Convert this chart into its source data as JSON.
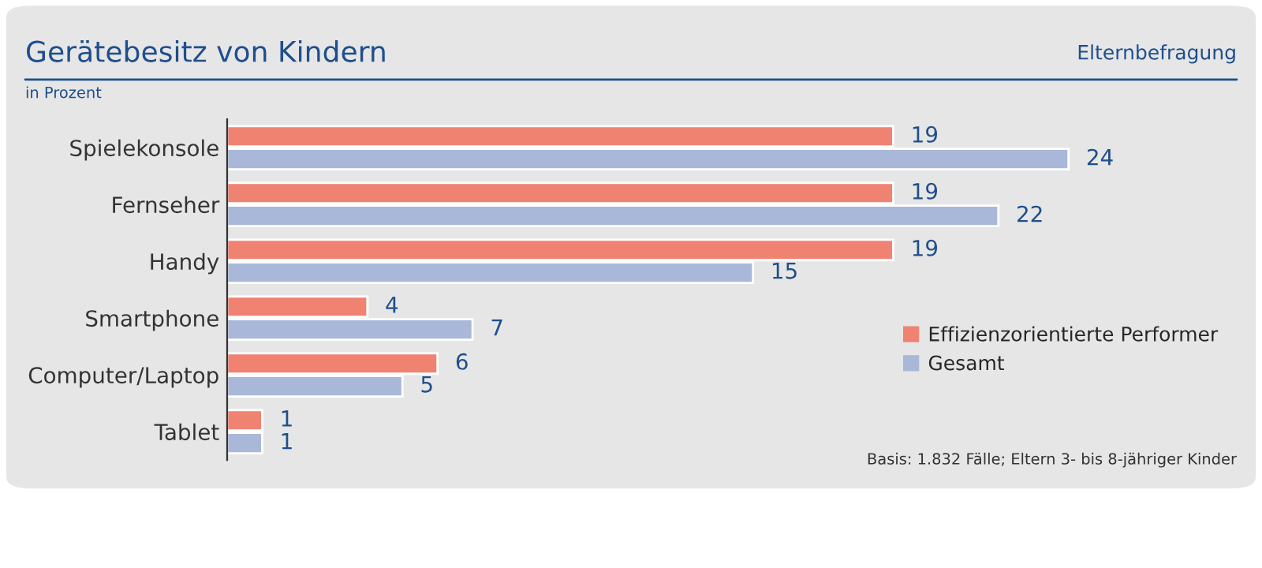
{
  "chart_data": {
    "type": "bar",
    "orientation": "horizontal",
    "title": "Gerätebesitz von Kindern",
    "subtitle": "Elternbefragung",
    "ylabel": "in Prozent",
    "categories": [
      "Spielekonsole",
      "Fernseher",
      "Handy",
      "Smartphone",
      "Computer/Laptop",
      "Tablet"
    ],
    "series": [
      {
        "name": "Effizienzorientierte Performer",
        "color": "#f08272",
        "values": [
          19,
          19,
          19,
          4,
          6,
          1
        ]
      },
      {
        "name": "Gesamt",
        "color": "#a9b8d8",
        "values": [
          24,
          22,
          15,
          7,
          5,
          1
        ]
      }
    ],
    "data_labels": true,
    "legend": "bottom right",
    "grid": false,
    "annotations": [
      "Basis: 1.832 Fälle; Eltern 3- bis 8-jähriger Kinder"
    ]
  }
}
